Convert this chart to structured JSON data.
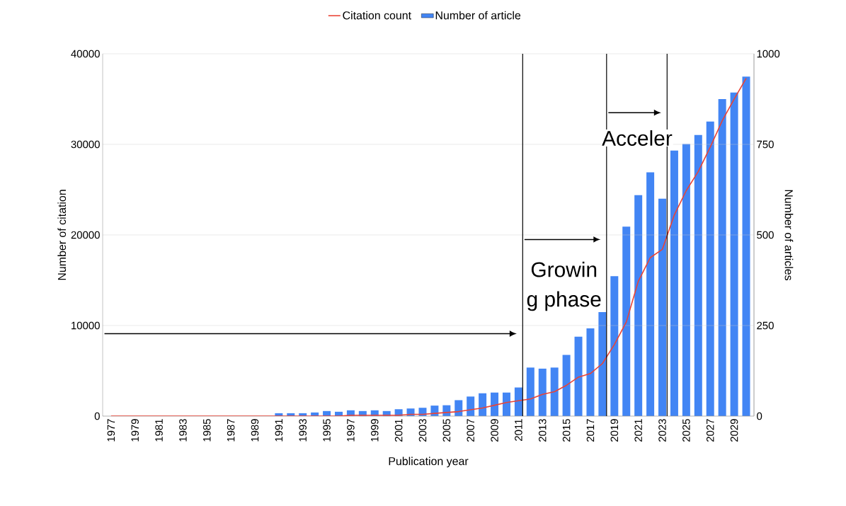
{
  "chart_data": {
    "type": "bar",
    "xlabel": "Publication year",
    "ylabel": "Number of citation",
    "y2label": "Number of articles",
    "x": [
      1977,
      1978,
      1979,
      1980,
      1981,
      1982,
      1983,
      1984,
      1985,
      1986,
      1987,
      1988,
      1989,
      1990,
      1991,
      1992,
      1993,
      1994,
      1995,
      1996,
      1997,
      1998,
      1999,
      2000,
      2001,
      2002,
      2003,
      2004,
      2005,
      2006,
      2007,
      2008,
      2009,
      2010,
      2011,
      2012,
      2013,
      2014,
      2015,
      2016,
      2017,
      2018,
      2019,
      2020,
      2021,
      2022,
      2023,
      2024,
      2025,
      2026,
      2027,
      2028,
      2029,
      2030
    ],
    "series": [
      {
        "name": "Citation count",
        "type": "line",
        "color": "#ea4335",
        "values": [
          0,
          0,
          0,
          0,
          0,
          0,
          0,
          0,
          0,
          0,
          0,
          0,
          0,
          0,
          0,
          0,
          0,
          0,
          0,
          0,
          100,
          100,
          100,
          100,
          100,
          200,
          200,
          300,
          400,
          500,
          700,
          900,
          1200,
          1500,
          1700,
          1900,
          2400,
          2700,
          3400,
          4300,
          4700,
          5800,
          7900,
          10400,
          14900,
          17500,
          18400,
          22200,
          24900,
          27000,
          29700,
          32600,
          35000,
          37300
        ]
      },
      {
        "name": "Number of article",
        "axis": "y2",
        "color": "#4285f4",
        "values": [
          0,
          0,
          0,
          0,
          0,
          0,
          0,
          0,
          0,
          0,
          0,
          0,
          0,
          null,
          8,
          8,
          8,
          10,
          14,
          12,
          16,
          14,
          16,
          14,
          19,
          21,
          23,
          29,
          30,
          44,
          54,
          63,
          65,
          65,
          79,
          134,
          131,
          134,
          169,
          219,
          242,
          287,
          386,
          523,
          610,
          673,
          600,
          733,
          751,
          776,
          813,
          875,
          893,
          937
        ]
      }
    ],
    "xlim": [
      1976.3,
      2030.65
    ],
    "xticks": [
      1977,
      1979,
      1981,
      1983,
      1985,
      1987,
      1989,
      1991,
      1993,
      1995,
      1997,
      1999,
      2001,
      2003,
      2005,
      2007,
      2009,
      2011,
      2013,
      2015,
      2017,
      2019,
      2021,
      2023,
      2025,
      2027,
      2029
    ],
    "ylim": [
      0,
      40000
    ],
    "yticks": [
      0,
      10000,
      20000,
      30000,
      40000
    ],
    "y2lim": [
      0,
      1000
    ],
    "y2ticks": [
      0,
      250,
      500,
      750,
      1000
    ],
    "ref_lines": [
      {
        "axis": "x",
        "value": 2011.35,
        "color": "#000000"
      },
      {
        "axis": "x",
        "value": 2018.35,
        "color": "#000000"
      },
      {
        "axis": "x",
        "value": 2023.4,
        "color": "#000000"
      }
    ],
    "annotations": [
      "Growin",
      "g phase",
      "Acceler"
    ],
    "grid": "y",
    "legend": "top",
    "marker": "none"
  }
}
